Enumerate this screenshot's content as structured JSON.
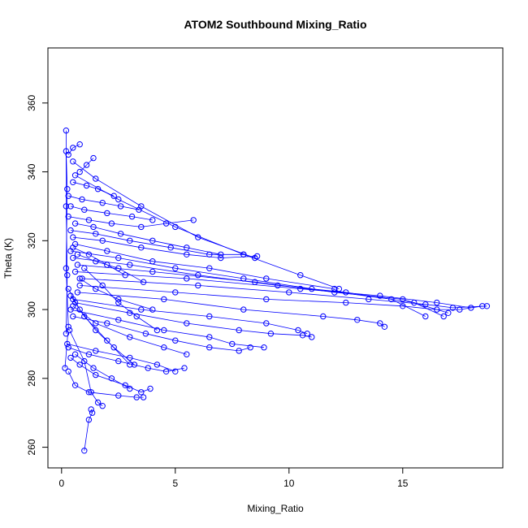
{
  "chart_data": {
    "type": "scatter",
    "title": "ATOM2 Southbound Mixing_Ratio",
    "xlabel": "Mixing_Ratio",
    "ylabel": "Theta (K)",
    "xlim": [
      -0.6,
      19.4
    ],
    "ylim": [
      254,
      376
    ],
    "xticks": [
      0,
      5,
      10,
      15
    ],
    "yticks": [
      260,
      280,
      300,
      320,
      340,
      360
    ],
    "grid": false,
    "legend": "none",
    "color": "#0000ff",
    "series": [
      {
        "x": [
          1.0,
          1.2,
          1.35,
          1.3
        ],
        "y": [
          259,
          268,
          270,
          271
        ]
      },
      {
        "x": [
          0.2,
          0.25,
          0.2,
          0.2
        ],
        "y": [
          293,
          310,
          330,
          352
        ]
      },
      {
        "x": [
          0.15,
          0.3,
          0.2,
          0.25,
          0.2
        ],
        "y": [
          283,
          295,
          312,
          335,
          346
        ]
      },
      {
        "x": [
          0.3,
          0.6,
          1.2,
          2.5,
          3.3,
          3.6
        ],
        "y": [
          282,
          278,
          276,
          275,
          274.5,
          274.5
        ]
      },
      {
        "x": [
          0.4,
          0.8,
          1.5,
          2.8,
          3.5,
          3.9
        ],
        "y": [
          286,
          284,
          281,
          278,
          276,
          277
        ]
      },
      {
        "x": [
          0.3,
          1.2,
          2.5,
          3.8,
          4.6,
          5.4
        ],
        "y": [
          289,
          287,
          285,
          283,
          282,
          283
        ]
      },
      {
        "x": [
          0.25,
          1.5,
          3.0,
          4.2,
          5.0
        ],
        "y": [
          290,
          288,
          286,
          284,
          282
        ]
      },
      {
        "x": [
          0.35,
          1.0,
          1.3,
          1.6,
          1.8
        ],
        "y": [
          294,
          285,
          276,
          273,
          272
        ]
      },
      {
        "x": [
          0.5,
          2.0,
          3.7,
          5.0,
          6.5,
          7.8,
          8.3
        ],
        "y": [
          298,
          296,
          293,
          291,
          289,
          288,
          289
        ]
      },
      {
        "x": [
          0.4,
          2.5,
          4.5,
          6.5,
          7.5,
          8.9
        ],
        "y": [
          300,
          297,
          294,
          292,
          290,
          289
        ]
      },
      {
        "x": [
          0.6,
          3.0,
          5.5,
          7.8,
          9.2,
          10.6,
          11.0
        ],
        "y": [
          302,
          299,
          296,
          294,
          293,
          292.5,
          292
        ]
      },
      {
        "x": [
          0.5,
          3.5,
          6.5,
          9.0,
          10.4,
          10.8
        ],
        "y": [
          303,
          300,
          298,
          296,
          294,
          293
        ]
      },
      {
        "x": [
          0.7,
          4.5,
          8.0,
          11.5,
          13.0,
          14.0,
          14.2
        ],
        "y": [
          305,
          303,
          300,
          298,
          297,
          296,
          295
        ]
      },
      {
        "x": [
          0.8,
          5.0,
          9.0,
          12.5,
          15.0,
          16.5,
          17.5,
          18.5
        ],
        "y": [
          307,
          305,
          303,
          302,
          301,
          300,
          300,
          301
        ]
      },
      {
        "x": [
          0.9,
          6.0,
          10.0,
          13.5,
          16.0,
          17.2,
          18.7
        ],
        "y": [
          309,
          307,
          305,
          303,
          301.5,
          300.5,
          301
        ]
      },
      {
        "x": [
          0.6,
          5.5,
          10.5,
          14.0,
          16.5,
          18.0
        ],
        "y": [
          311,
          309,
          306,
          304,
          302,
          300.5
        ]
      },
      {
        "x": [
          0.7,
          4.0,
          8.5,
          12.0,
          15.0,
          17.0
        ],
        "y": [
          313,
          311,
          308,
          305,
          303,
          299
        ]
      },
      {
        "x": [
          0.5,
          3.0,
          6.0,
          9.5,
          12.5,
          15.5,
          16.8
        ],
        "y": [
          315,
          313,
          310,
          307,
          305,
          302,
          298
        ]
      },
      {
        "x": [
          0.4,
          2.5,
          5.0,
          8.0,
          11.0,
          14.5,
          16.0
        ],
        "y": [
          317,
          315,
          312,
          309,
          306,
          303,
          298
        ]
      },
      {
        "x": [
          0.6,
          2.0,
          4.0,
          6.5,
          9.0,
          12.0
        ],
        "y": [
          319,
          317,
          314,
          312,
          309,
          306
        ]
      },
      {
        "x": [
          0.5,
          1.8,
          3.5,
          5.5,
          7.0,
          8.6
        ],
        "y": [
          321,
          320,
          318,
          316,
          315,
          315.5
        ]
      },
      {
        "x": [
          0.4,
          1.5,
          3.0,
          4.8,
          6.5,
          8.0
        ],
        "y": [
          323,
          322,
          320,
          318,
          316,
          316
        ]
      },
      {
        "x": [
          0.6,
          1.4,
          2.6,
          4.0,
          5.5,
          7.0
        ],
        "y": [
          325,
          324,
          322,
          320,
          318,
          316
        ]
      },
      {
        "x": [
          0.3,
          1.2,
          2.2,
          3.5,
          4.6,
          5.8
        ],
        "y": [
          327,
          326,
          325,
          324,
          325,
          326
        ]
      },
      {
        "x": [
          0.4,
          1.0,
          2.0,
          3.1,
          4.0
        ],
        "y": [
          330,
          329,
          328,
          327,
          326
        ]
      },
      {
        "x": [
          0.3,
          0.9,
          1.8,
          2.6,
          3.4
        ],
        "y": [
          333,
          332,
          331,
          330,
          329
        ]
      },
      {
        "x": [
          0.5,
          1.1,
          1.6,
          2.3
        ],
        "y": [
          337,
          336,
          335,
          333
        ]
      },
      {
        "x": [
          0.8,
          1.1,
          1.4
        ],
        "y": [
          340,
          342,
          344
        ]
      },
      {
        "x": [
          0.3,
          0.5,
          0.8
        ],
        "y": [
          345,
          347,
          348
        ]
      },
      {
        "x": [
          0.5,
          1.5,
          3.5,
          6.0,
          8.5
        ],
        "y": [
          343,
          338,
          330,
          321,
          315
        ]
      },
      {
        "x": [
          0.6,
          2.5,
          5.0,
          8.0,
          10.5,
          12.2
        ],
        "y": [
          339,
          332,
          324,
          316,
          310,
          306
        ]
      },
      {
        "x": [
          0.8,
          1.5,
          2.5,
          4.0
        ],
        "y": [
          309,
          306,
          303,
          300
        ]
      },
      {
        "x": [
          0.5,
          1.5,
          3.0,
          4.5,
          5.5
        ],
        "y": [
          301,
          296,
          292,
          289,
          287
        ]
      },
      {
        "x": [
          0.4,
          1.0,
          2.0,
          3.0
        ],
        "y": [
          304,
          298,
          291,
          284
        ]
      },
      {
        "x": [
          0.3,
          0.8,
          1.5,
          2.3,
          3.2
        ],
        "y": [
          306,
          300,
          294,
          289,
          284
        ]
      },
      {
        "x": [
          1.0,
          1.8,
          2.5,
          3.3,
          4.2
        ],
        "y": [
          312,
          307,
          302,
          298,
          294
        ]
      },
      {
        "x": [
          0.7,
          1.5,
          2.5,
          3.6
        ],
        "y": [
          316,
          314,
          312,
          308
        ]
      },
      {
        "x": [
          0.5,
          1.2,
          2.0,
          2.8
        ],
        "y": [
          318,
          316,
          313,
          310
        ]
      },
      {
        "x": [
          0.6,
          1.4,
          2.2,
          3.0
        ],
        "y": [
          287,
          283,
          280,
          277
        ]
      }
    ]
  }
}
